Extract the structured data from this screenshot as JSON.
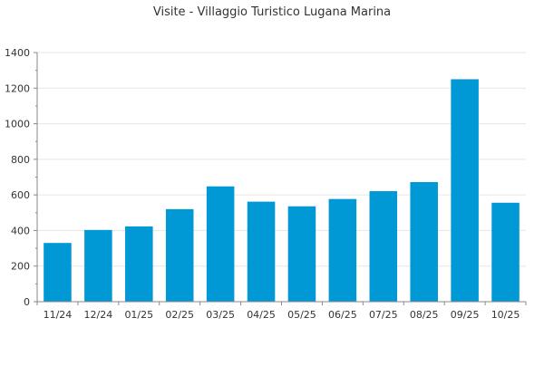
{
  "chart_data": {
    "type": "bar",
    "title": "Visite - Villaggio Turistico Lugana Marina",
    "xlabel": "",
    "ylabel": "",
    "categories": [
      "11/24",
      "12/24",
      "01/25",
      "02/25",
      "03/25",
      "04/25",
      "05/25",
      "06/25",
      "07/25",
      "08/25",
      "09/25",
      "10/25"
    ],
    "values": [
      330,
      403,
      423,
      520,
      648,
      562,
      536,
      577,
      621,
      672,
      1250,
      556
    ],
    "ylim": [
      0,
      1400
    ],
    "yticks": [
      0,
      200,
      400,
      600,
      800,
      1000,
      1200,
      1400
    ],
    "grid": true,
    "legend": "none"
  },
  "colors": {
    "bar": "#0099d6",
    "grid": "#e6e6e6",
    "axis": "#888888",
    "text": "#333333"
  }
}
